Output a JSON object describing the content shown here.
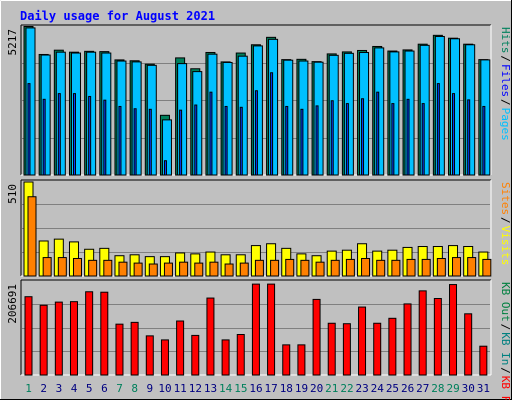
{
  "title": "Daily usage for August 2021",
  "colors": {
    "background": "#c0c0c0",
    "border": "#000000",
    "title": "#0000ff",
    "hits": "#00805c",
    "files": "#0040ff",
    "files_side": "#0000ff",
    "pages": "#00c0ff",
    "visits": "#ffff00",
    "sites": "#ff8000",
    "kbin": "#008080",
    "kbout": "#008040",
    "kbf": "#ff0000",
    "axis_weekday": "#000080",
    "axis_weekend": "#00805c"
  },
  "chart_data": [
    {
      "type": "bar",
      "panel": "hits-files-pages",
      "max_label": "5217",
      "ylim": [
        0,
        5217
      ],
      "legend": [
        "Pages",
        "Files",
        "Hits"
      ],
      "categories": [
        "1",
        "2",
        "3",
        "4",
        "5",
        "6",
        "7",
        "8",
        "9",
        "10",
        "11",
        "12",
        "13",
        "14",
        "15",
        "16",
        "17",
        "18",
        "19",
        "20",
        "21",
        "22",
        "23",
        "24",
        "25",
        "26",
        "27",
        "28",
        "29",
        "30",
        "31"
      ],
      "weekend": [
        1,
        7,
        8,
        14,
        15,
        21,
        22,
        28,
        29
      ],
      "series": [
        {
          "name": "Hits",
          "values": [
            5200,
            4220,
            4370,
            4300,
            4330,
            4320,
            4030,
            4000,
            3880,
            2090,
            4100,
            3720,
            4290,
            3960,
            4270,
            4560,
            4820,
            4040,
            4050,
            3970,
            4240,
            4310,
            4360,
            4500,
            4340,
            4380,
            4580,
            4890,
            4790,
            4580,
            4040
          ]
        },
        {
          "name": "Files",
          "values": [
            5150,
            4200,
            4300,
            4270,
            4300,
            4270,
            3990,
            3960,
            3840,
            1930,
            3900,
            3620,
            4230,
            3940,
            4160,
            4520,
            4750,
            4020,
            3990,
            3950,
            4190,
            4260,
            4290,
            4450,
            4310,
            4340,
            4540,
            4850,
            4770,
            4560,
            4030
          ]
        },
        {
          "name": "Pages",
          "values": [
            3200,
            2650,
            2850,
            2850,
            2750,
            2620,
            2400,
            2320,
            2300,
            500,
            2270,
            2450,
            2900,
            2400,
            2370,
            2950,
            3580,
            2400,
            2300,
            2420,
            2600,
            2500,
            2670,
            2900,
            2500,
            2650,
            2500,
            3200,
            2850,
            2630,
            2400
          ]
        }
      ]
    },
    {
      "type": "bar",
      "panel": "visits-sites",
      "max_label": "510",
      "ylim": [
        0,
        510
      ],
      "legend": [
        "Visits",
        "Sites"
      ],
      "series": [
        {
          "name": "Visits",
          "values": [
            510,
            190,
            200,
            185,
            145,
            150,
            110,
            115,
            105,
            105,
            125,
            120,
            130,
            115,
            115,
            165,
            175,
            150,
            120,
            110,
            135,
            140,
            175,
            135,
            140,
            155,
            160,
            160,
            165,
            160,
            130
          ]
        },
        {
          "name": "Sites",
          "values": [
            430,
            100,
            100,
            95,
            85,
            85,
            75,
            70,
            65,
            70,
            75,
            70,
            75,
            65,
            70,
            85,
            85,
            90,
            85,
            75,
            85,
            90,
            95,
            85,
            85,
            90,
            90,
            95,
            100,
            100,
            90
          ]
        }
      ]
    },
    {
      "type": "bar",
      "panel": "kbytes",
      "max_label": "206691",
      "ylim": [
        0,
        206691
      ],
      "legend": [
        "KB F",
        "KB In",
        "KB Out"
      ],
      "series": [
        {
          "name": "KB F",
          "values": [
            174000,
            155000,
            162000,
            163000,
            185000,
            184000,
            113000,
            117000,
            87000,
            78000,
            120000,
            88000,
            171000,
            78000,
            90000,
            202000,
            202000,
            67000,
            67000,
            168000,
            115000,
            114000,
            151000,
            115000,
            126000,
            158000,
            187000,
            170000,
            201000,
            136000,
            64000
          ]
        }
      ]
    }
  ]
}
